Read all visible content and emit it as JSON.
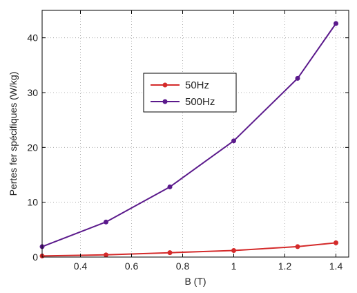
{
  "chart_data": {
    "type": "line",
    "title": "",
    "xlabel": "B (T)",
    "ylabel": "Pertes fer spécifiques (W/kg)",
    "xlim": [
      0.25,
      1.45
    ],
    "ylim": [
      0,
      45
    ],
    "x_ticks": [
      0.4,
      0.6,
      0.8,
      1,
      1.2,
      1.4
    ],
    "x_tick_labels": [
      "0.4",
      "0.6",
      "0.8",
      "1",
      "1.2",
      "1.4"
    ],
    "y_ticks": [
      0,
      10,
      20,
      30,
      40
    ],
    "y_tick_labels": [
      "0",
      "10",
      "20",
      "30",
      "40"
    ],
    "grid": true,
    "legend_position": "center",
    "series": [
      {
        "name": "50Hz",
        "color": "#d42a2a",
        "x": [
          0.25,
          0.5,
          0.75,
          1.0,
          1.25,
          1.4
        ],
        "y": [
          0.2,
          0.4,
          0.8,
          1.2,
          1.9,
          2.6
        ]
      },
      {
        "name": "500Hz",
        "color": "#5b1a8c",
        "x": [
          0.25,
          0.5,
          0.75,
          1.0,
          1.25,
          1.4
        ],
        "y": [
          1.9,
          6.4,
          12.8,
          21.2,
          32.6,
          42.6
        ]
      }
    ]
  }
}
